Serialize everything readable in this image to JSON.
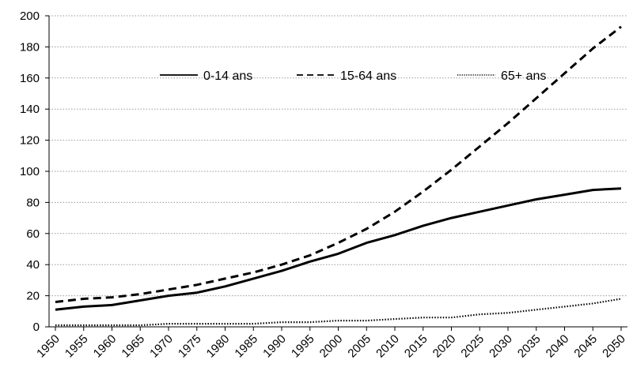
{
  "chart_data": {
    "type": "line",
    "title": "",
    "xlabel": "",
    "ylabel": "",
    "x": [
      "1950",
      "1955",
      "1960",
      "1965",
      "1970",
      "1975",
      "1980",
      "1985",
      "1990",
      "1995",
      "2000",
      "2005",
      "2010",
      "2015",
      "2020",
      "2025",
      "2030",
      "2035",
      "2040",
      "2045",
      "2050"
    ],
    "ylim": [
      0,
      200
    ],
    "yticks": [
      "0",
      "20",
      "40",
      "60",
      "80",
      "100",
      "120",
      "140",
      "160",
      "180",
      "200"
    ],
    "grid": true,
    "legend": "top",
    "series": [
      {
        "name": "0-14 ans",
        "style": "solid",
        "color": "#000000",
        "values": [
          11,
          13,
          14,
          17,
          20,
          22,
          26,
          31,
          36,
          42,
          47,
          54,
          59,
          65,
          70,
          74,
          78,
          82,
          85,
          88,
          89
        ]
      },
      {
        "name": "15-64 ans",
        "style": "dashed",
        "color": "#000000",
        "values": [
          16,
          18,
          19,
          21,
          24,
          27,
          31,
          35,
          40,
          46,
          54,
          63,
          74,
          87,
          101,
          116,
          131,
          147,
          163,
          179,
          193
        ]
      },
      {
        "name": "65+ ans",
        "style": "dotted",
        "color": "#000000",
        "values": [
          1,
          1,
          1,
          1,
          2,
          2,
          2,
          2,
          3,
          3,
          4,
          4,
          5,
          6,
          6,
          8,
          9,
          11,
          13,
          15,
          18
        ]
      }
    ]
  }
}
